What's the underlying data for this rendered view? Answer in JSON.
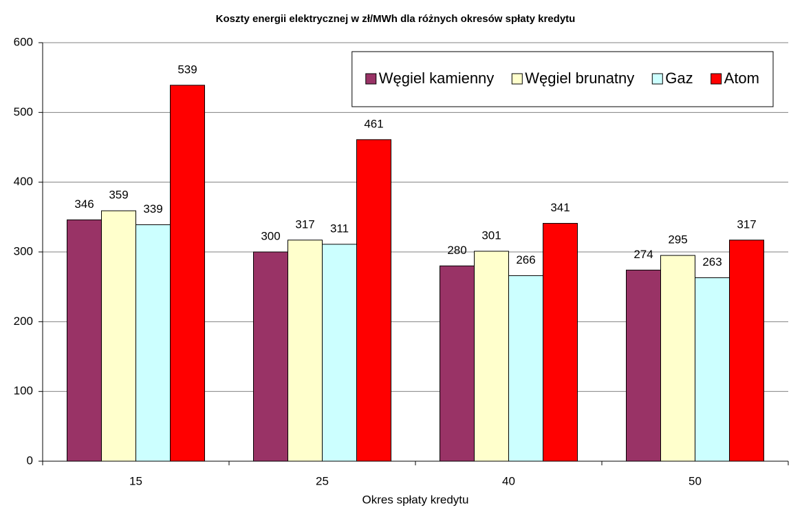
{
  "chart_data": {
    "type": "bar",
    "title": "Koszty energii elektrycznej w zł/MWh dla różnych okresów spłaty kredytu",
    "x_label": "Okres spłaty kredytu",
    "categories": [
      "15",
      "25",
      "40",
      "50"
    ],
    "series": [
      {
        "name": "Węgiel kamienny",
        "color": "#993366",
        "values": [
          346,
          300,
          280,
          274
        ]
      },
      {
        "name": "Węgiel brunatny",
        "color": "#ffffcc",
        "values": [
          359,
          317,
          301,
          295
        ]
      },
      {
        "name": "Gaz",
        "color": "#ccffff",
        "values": [
          339,
          311,
          266,
          263
        ]
      },
      {
        "name": "Atom",
        "color": "#ff0000",
        "values": [
          539,
          461,
          341,
          317
        ]
      }
    ],
    "ylim": [
      0,
      600
    ],
    "yticks": [
      0,
      100,
      200,
      300,
      400,
      500,
      600
    ],
    "grid": true,
    "legend": "top-right"
  }
}
